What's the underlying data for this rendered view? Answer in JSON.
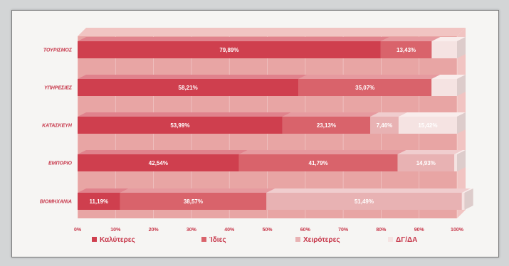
{
  "chart_data": {
    "type": "bar",
    "orientation": "horizontal",
    "stacked": true,
    "percent": true,
    "categories": [
      "ΤΟΥΡΙΣΜΟΣ",
      "ΥΠΗΡΕΣΙΕΣ",
      "ΚΑΤΑΣΚΕΥΗ",
      "ΕΜΠΟΡΙΟ",
      "ΒΙΟΜΗΧΑΝΙΑ"
    ],
    "series": [
      {
        "name": "Καλύτερες",
        "color": "#cf3f4e",
        "values": [
          79.89,
          58.21,
          53.99,
          42.54,
          11.19
        ]
      },
      {
        "name": "Ίδιες",
        "color": "#d9636b",
        "values": [
          13.43,
          35.07,
          23.13,
          41.79,
          38.57
        ]
      },
      {
        "name": "Χειρότερες",
        "color": "#e8b2b3",
        "values": [
          0,
          0,
          7.46,
          14.93,
          51.49
        ]
      },
      {
        "name": "ΔΓ/ΔΑ",
        "color": "#f5e3e2",
        "values": [
          6.68,
          6.72,
          15.42,
          0.74,
          0.75
        ]
      }
    ],
    "labels": [
      [
        "79,89%",
        "13,43%",
        "",
        ""
      ],
      [
        "58,21%",
        "35,07%",
        "",
        ""
      ],
      [
        "53,99%",
        "23,13%",
        "7,46%",
        "15,42%"
      ],
      [
        "42,54%",
        "41,79%",
        "14,93%",
        ""
      ],
      [
        "11,19%",
        "38,57%",
        "51,49%",
        ""
      ]
    ],
    "xticks": [
      "0%",
      "10%",
      "20%",
      "30%",
      "40%",
      "50%",
      "60%",
      "70%",
      "80%",
      "90%",
      "100%"
    ],
    "xlim": [
      0,
      100
    ],
    "grid": true,
    "legend": "bottom",
    "colors": {
      "panel": "#e8a5a4",
      "wall_top": "#f1c4c2",
      "depth_side": "#f3d2d1",
      "label": "#c7374a"
    }
  }
}
